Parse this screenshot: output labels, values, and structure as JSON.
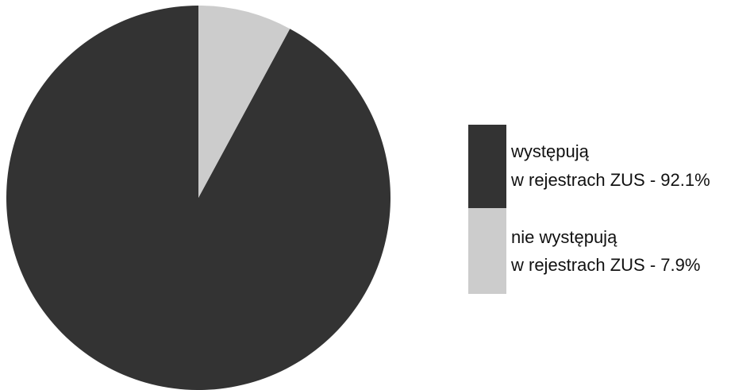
{
  "chart_data": {
    "type": "pie",
    "title": "",
    "slices": [
      {
        "label_line1": "występują",
        "label_line2": "w rejestrach ZUS - 92.1%",
        "value": 92.1,
        "color": "#333333"
      },
      {
        "label_line1": "nie występują",
        "label_line2": "w rejestrach ZUS - 7.9%",
        "value": 7.9,
        "color": "#cccccc"
      }
    ],
    "legend_position": "right"
  }
}
